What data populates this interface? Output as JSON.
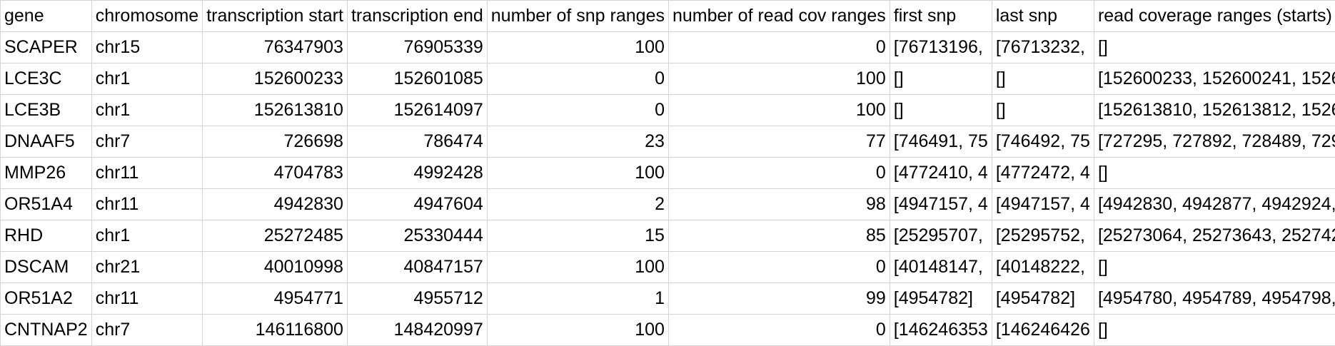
{
  "columns": [
    {
      "label": "gene",
      "align": "left"
    },
    {
      "label": "chromosome",
      "align": "left"
    },
    {
      "label": "transcription start",
      "align": "right"
    },
    {
      "label": "transcription end",
      "align": "right"
    },
    {
      "label": "number of snp ranges",
      "align": "right"
    },
    {
      "label": "number of read cov ranges",
      "align": "right"
    },
    {
      "label": "first snp",
      "align": "left"
    },
    {
      "label": "last snp",
      "align": "left"
    },
    {
      "label": "read coverage ranges (starts)",
      "align": "left"
    }
  ],
  "rows": [
    [
      "SCAPER",
      "chr15",
      "76347903",
      "76905339",
      "100",
      "0",
      "[76713196,",
      "[76713232,",
      "[]"
    ],
    [
      "LCE3C",
      "chr1",
      "152600233",
      "152601085",
      "0",
      "100",
      "[]",
      "[]",
      "[152600233, 152600241, 1526"
    ],
    [
      "LCE3B",
      "chr1",
      "152613810",
      "152614097",
      "0",
      "100",
      "[]",
      "[]",
      "[152613810, 152613812, 1526"
    ],
    [
      "DNAAF5",
      "chr7",
      "726698",
      "786474",
      "23",
      "77",
      "[746491, 75",
      "[746492, 75",
      "[727295, 727892, 728489, 729"
    ],
    [
      "MMP26",
      "chr11",
      "4704783",
      "4992428",
      "100",
      "0",
      "[4772410, 4",
      "[4772472, 4",
      "[]"
    ],
    [
      "OR51A4",
      "chr11",
      "4942830",
      "4947604",
      "2",
      "98",
      "[4947157, 4",
      "[4947157, 4",
      "[4942830, 4942877, 4942924,"
    ],
    [
      "RHD",
      "chr1",
      "25272485",
      "25330444",
      "15",
      "85",
      "[25295707,",
      "[25295752,",
      "[25273064, 25273643, 252742"
    ],
    [
      "DSCAM",
      "chr21",
      "40010998",
      "40847157",
      "100",
      "0",
      "[40148147,",
      "[40148222,",
      "[]"
    ],
    [
      "OR51A2",
      "chr11",
      "4954771",
      "4955712",
      "1",
      "99",
      "[4954782]",
      "[4954782]",
      "[4954780, 4954789, 4954798,"
    ],
    [
      "CNTNAP2",
      "chr7",
      "146116800",
      "148420997",
      "100",
      "0",
      "[146246353",
      "[146246426",
      "[]"
    ]
  ]
}
